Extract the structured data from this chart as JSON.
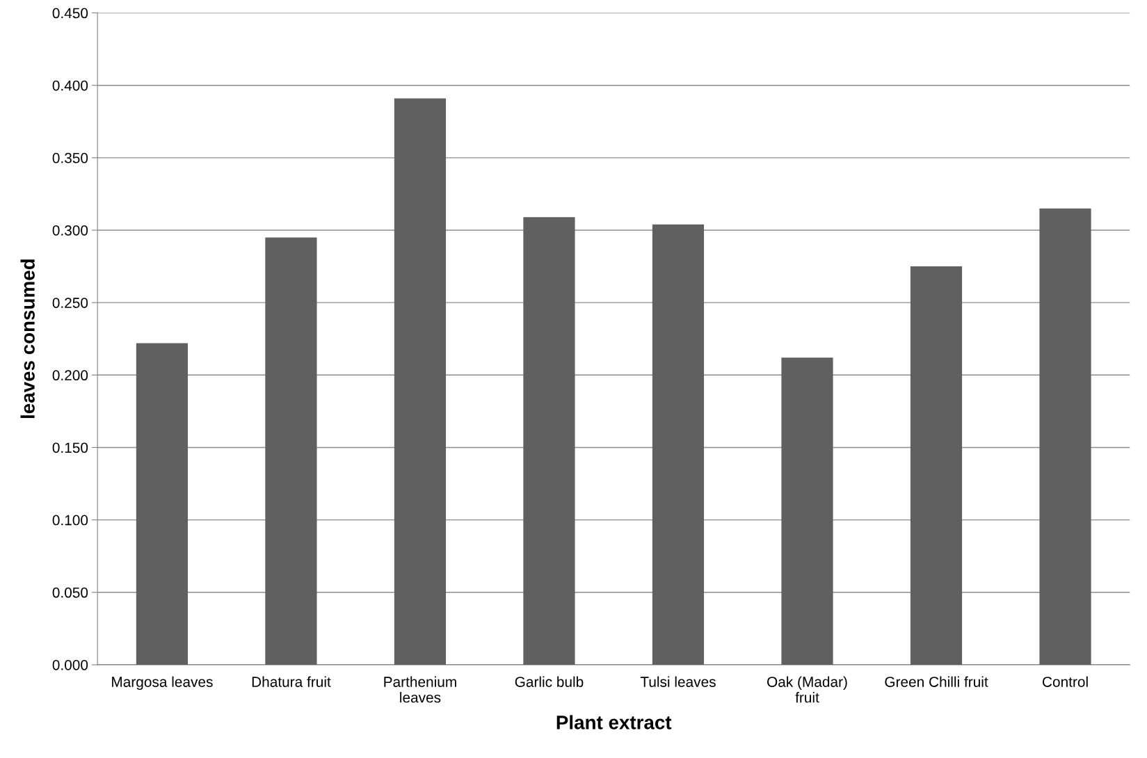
{
  "chart_data": {
    "type": "bar",
    "xlabel": "Plant extract",
    "ylabel": "leaves consumed",
    "categories": [
      "Margosa leaves",
      "Dhatura fruit",
      "Parthenium\nleaves",
      "Garlic bulb",
      "Tulsi leaves",
      "Oak (Madar)\nfruit",
      "Green Chilli fruit",
      "Control"
    ],
    "values": [
      0.222,
      0.295,
      0.391,
      0.309,
      0.304,
      0.212,
      0.275,
      0.315
    ],
    "color": "#606060",
    "ylim": [
      0,
      0.45
    ],
    "yticks": [
      {
        "value": 0,
        "label": "0.000"
      },
      {
        "value": 0.05,
        "label": "0.050"
      },
      {
        "value": 0.1,
        "label": "0.100"
      },
      {
        "value": 0.15,
        "label": "0.150"
      },
      {
        "value": 0.2,
        "label": "0.200"
      },
      {
        "value": 0.25,
        "label": "0.250"
      },
      {
        "value": 0.3,
        "label": "0.300"
      },
      {
        "value": 0.35,
        "label": "0.350"
      },
      {
        "value": 0.4,
        "label": "0.400"
      },
      {
        "value": 0.45,
        "label": "0.450"
      }
    ],
    "grid": "y",
    "legend": false
  }
}
